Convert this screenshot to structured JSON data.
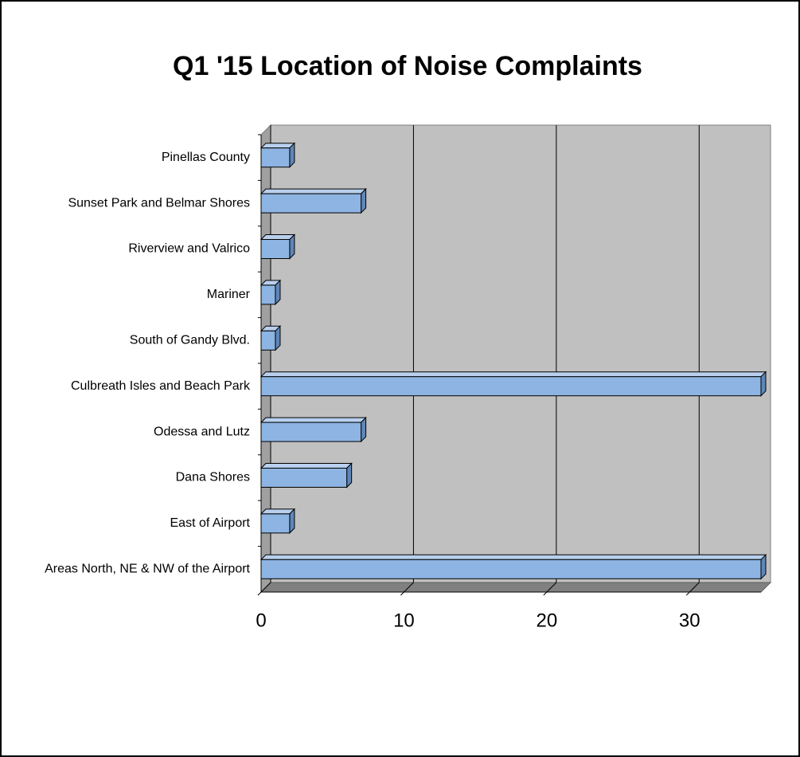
{
  "chart_data": {
    "type": "bar3d",
    "title": "Q1 '15 Location of Noise Complaints",
    "categories": [
      "Pinellas County",
      "Sunset Park and Belmar Shores",
      "Riverview and Valrico",
      "Mariner",
      "South of Gandy Blvd.",
      "Culbreath Isles and Beach Park",
      "Odessa and Lutz",
      "Dana Shores",
      "East of Airport",
      "Areas North, NE & NW of the Airport"
    ],
    "values": [
      2,
      7,
      2,
      1,
      1,
      35,
      7,
      6,
      2,
      35
    ],
    "color": "#8db4e2",
    "xlim": [
      0,
      35
    ],
    "xticks": [
      0,
      10,
      20,
      30
    ],
    "grid": true
  }
}
